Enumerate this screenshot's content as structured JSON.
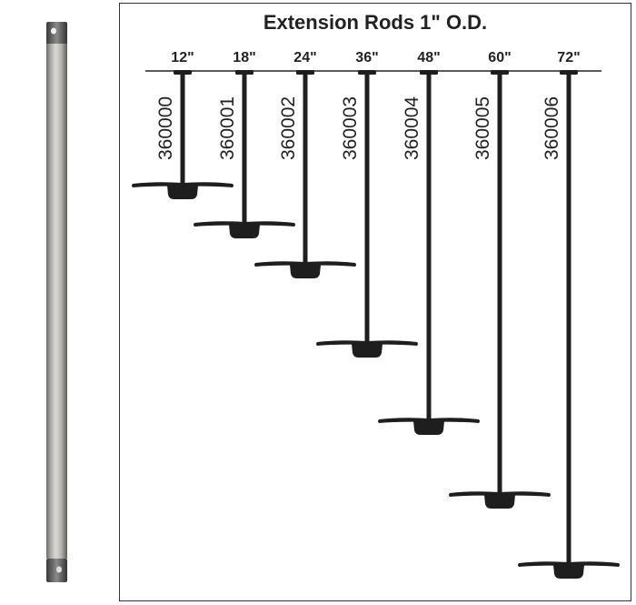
{
  "title": "Extension Rods 1\" O.D.",
  "rods": [
    {
      "length": "12\"",
      "part": "360000"
    },
    {
      "length": "18\"",
      "part": "360001"
    },
    {
      "length": "24\"",
      "part": "360002"
    },
    {
      "length": "36\"",
      "part": "360003"
    },
    {
      "length": "48\"",
      "part": "360004"
    },
    {
      "length": "60\"",
      "part": "360005"
    },
    {
      "length": "72\"",
      "part": "360006"
    }
  ],
  "colors": {
    "ink": "#1e1e1e",
    "rod_finish": "#c4c2bf"
  }
}
